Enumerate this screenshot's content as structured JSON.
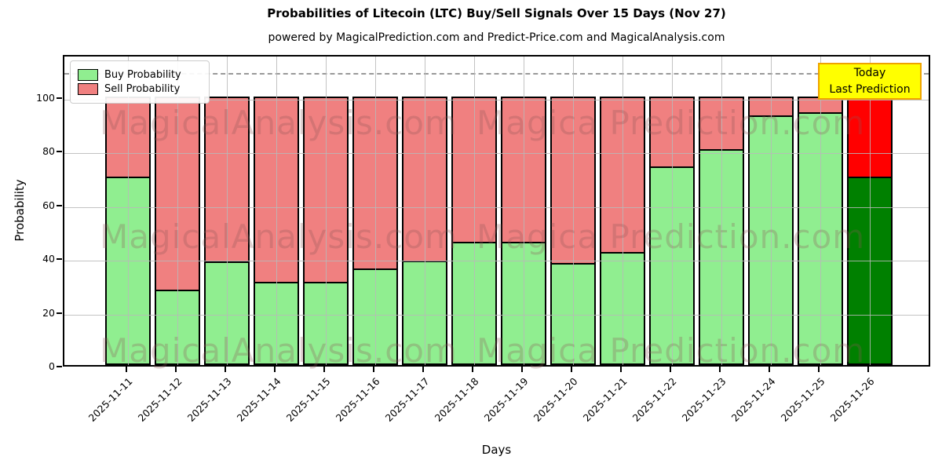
{
  "title": "Probabilities of Litecoin (LTC) Buy/Sell Signals Over 15 Days (Nov 27)",
  "subtitle": "powered by MagicalPrediction.com and Predict-Price.com and MagicalAnalysis.com",
  "legend": {
    "buy_label": "Buy Probability",
    "sell_label": "Sell Probability"
  },
  "annotation": {
    "line1": "Today",
    "line2": "Last Prediction"
  },
  "watermarks": {
    "left_text": "MagicalAnalysis.com",
    "right_text": "Magica Prediction.com"
  },
  "axes": {
    "xlabel": "Days",
    "ylabel": "Probability",
    "yticks": [
      0,
      20,
      40,
      60,
      80,
      100
    ],
    "ylim": [
      0,
      116
    ],
    "dashed_line_y": 110,
    "grid": "on, drawn above bars"
  },
  "colors": {
    "buy": "#90ee90",
    "sell": "#f08080",
    "today_buy": "#008000",
    "today_sell": "#ff0000",
    "grid": "#b8b8b8",
    "dashed": "#999999",
    "annotation_bg": "#ffff00",
    "annotation_border": "#efa300",
    "bar_edge": "#000000"
  },
  "chart_data": {
    "type": "bar",
    "stacked": true,
    "categories": [
      "2025-11-11",
      "2025-11-12",
      "2025-11-13",
      "2025-11-14",
      "2025-11-15",
      "2025-11-16",
      "2025-11-17",
      "2025-11-18",
      "2025-11-19",
      "2025-11-20",
      "2025-11-21",
      "2025-11-22",
      "2025-11-23",
      "2025-11-24",
      "2025-11-25",
      "2025-11-26"
    ],
    "series": [
      {
        "name": "Buy Probability",
        "values": [
          70,
          28,
          38.5,
          31,
          31,
          36,
          39,
          46,
          46,
          38,
          42,
          74,
          80.5,
          93,
          94,
          70
        ]
      },
      {
        "name": "Sell Probability",
        "values": [
          30,
          72,
          61.5,
          69,
          69,
          64,
          61,
          54,
          54,
          62,
          58,
          26,
          19.5,
          7,
          6,
          30
        ]
      }
    ],
    "bar_totals": 100,
    "today_index": 15,
    "title": "Probabilities of Litecoin (LTC) Buy/Sell Signals Over 15 Days (Nov 27)",
    "xlabel": "Days",
    "ylabel": "Probability",
    "legend_position": "upper left"
  }
}
